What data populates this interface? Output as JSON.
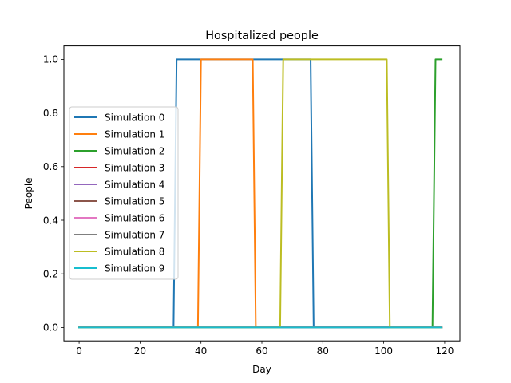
{
  "chart_data": {
    "type": "line",
    "title": "Hospitalized people",
    "xlabel": "Day",
    "ylabel": "People",
    "xlim": [
      -5,
      125
    ],
    "ylim": [
      -0.05,
      1.05
    ],
    "xticks": [
      0,
      20,
      40,
      60,
      80,
      100,
      120
    ],
    "xtick_labels": [
      "0",
      "20",
      "40",
      "60",
      "80",
      "100",
      "120"
    ],
    "yticks": [
      0.0,
      0.2,
      0.4,
      0.6,
      0.8,
      1.0
    ],
    "ytick_labels": [
      "0.0",
      "0.2",
      "0.4",
      "0.6",
      "0.8",
      "1.0"
    ],
    "grid": false,
    "legend_position": "center-left",
    "series": [
      {
        "name": "Simulation 0",
        "color": "#1f77b4",
        "x": [
          0,
          31,
          32,
          76,
          77,
          119
        ],
        "y": [
          0,
          0,
          1,
          1,
          0,
          0
        ]
      },
      {
        "name": "Simulation 1",
        "color": "#ff7f0e",
        "x": [
          0,
          39,
          40,
          57,
          58,
          119
        ],
        "y": [
          0,
          0,
          1,
          1,
          0,
          0
        ]
      },
      {
        "name": "Simulation 2",
        "color": "#2ca02c",
        "x": [
          0,
          116,
          117,
          119
        ],
        "y": [
          0,
          0,
          1,
          1
        ]
      },
      {
        "name": "Simulation 3",
        "color": "#d62728",
        "x": [
          0,
          119
        ],
        "y": [
          0,
          0
        ]
      },
      {
        "name": "Simulation 4",
        "color": "#9467bd",
        "x": [
          0,
          119
        ],
        "y": [
          0,
          0
        ]
      },
      {
        "name": "Simulation 5",
        "color": "#8c564b",
        "x": [
          0,
          119
        ],
        "y": [
          0,
          0
        ]
      },
      {
        "name": "Simulation 6",
        "color": "#e377c2",
        "x": [
          0,
          119
        ],
        "y": [
          0,
          0
        ]
      },
      {
        "name": "Simulation 7",
        "color": "#7f7f7f",
        "x": [
          0,
          119
        ],
        "y": [
          0,
          0
        ]
      },
      {
        "name": "Simulation 8",
        "color": "#bcbd22",
        "x": [
          0,
          66,
          67,
          101,
          102,
          119
        ],
        "y": [
          0,
          0,
          1,
          1,
          0,
          0
        ]
      },
      {
        "name": "Simulation 9",
        "color": "#17becf",
        "x": [
          0,
          119
        ],
        "y": [
          0,
          0
        ]
      }
    ]
  }
}
